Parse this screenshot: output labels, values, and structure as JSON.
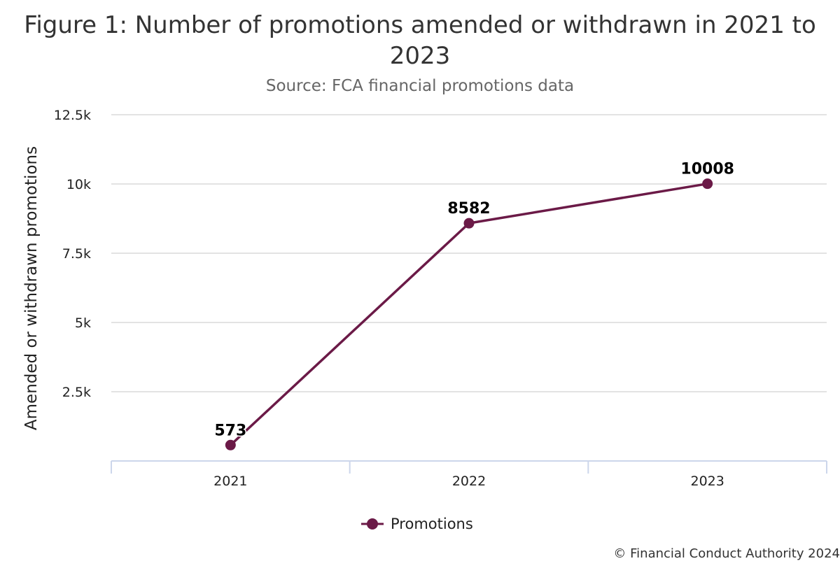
{
  "chart_data": {
    "type": "line",
    "title": "Figure 1: Number of promotions amended or withdrawn in 2021 to 2023",
    "subtitle": "Source: FCA financial promotions data",
    "ylabel": "Amended or withdrawn promotions",
    "xlabel": "",
    "categories": [
      "2021",
      "2022",
      "2023"
    ],
    "series": [
      {
        "name": "Promotions",
        "values": [
          573,
          8582,
          10008
        ],
        "color": "#6b1a47"
      }
    ],
    "data_labels": [
      "573",
      "8582",
      "10008"
    ],
    "yticks": [
      2500,
      5000,
      7500,
      10000,
      12500
    ],
    "ytick_labels": [
      "2.5k",
      "5k",
      "7.5k",
      "10k",
      "12.5k"
    ],
    "ylim": [
      0,
      12500
    ],
    "grid": true,
    "legend_position": "bottom-center"
  },
  "credit": "© Financial Conduct Authority 2024"
}
